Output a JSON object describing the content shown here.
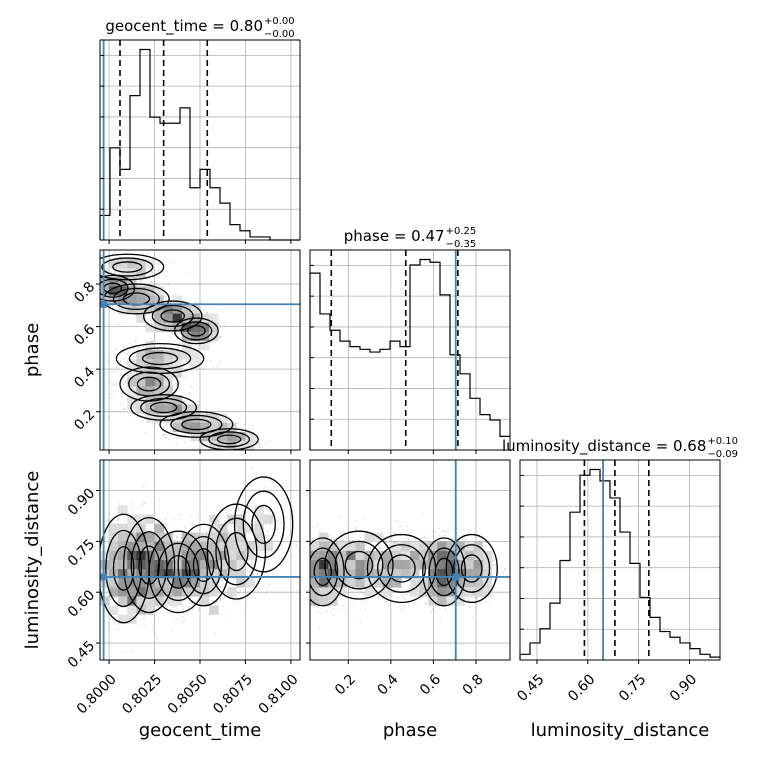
{
  "chart_data": {
    "type": "corner",
    "parameters": [
      {
        "name": "geocent_time",
        "range": [
          0.7995,
          0.8105
        ],
        "ticks": [
          "0.8000",
          "0.8025",
          "0.8050",
          "0.8075",
          "0.8100"
        ],
        "tick_values": [
          0.8,
          0.8025,
          0.805,
          0.8075,
          0.81
        ],
        "truth": 0.7997,
        "title": {
          "label": "geocent_time = 0.80",
          "plus": "+0.00",
          "minus": "−0.00"
        },
        "quantiles": [
          0.8006,
          0.803,
          0.8054
        ],
        "hist": {
          "edges_start": 0.7995,
          "bin_width": 0.00055,
          "counts": [
            8,
            30,
            23,
            47,
            62,
            40,
            38,
            38,
            43,
            17,
            23,
            17,
            12,
            5,
            3,
            1,
            1,
            0,
            0,
            0
          ]
        }
      },
      {
        "name": "phase",
        "range": [
          0.02,
          0.96
        ],
        "ticks": [
          "0.2",
          "0.4",
          "0.6",
          "0.8"
        ],
        "tick_values": [
          0.2,
          0.4,
          0.6,
          0.8
        ],
        "truth": 0.705,
        "title": {
          "label": "phase = 0.47",
          "plus": "+0.25",
          "minus": "−0.35"
        },
        "quantiles": [
          0.12,
          0.47,
          0.715
        ],
        "hist": {
          "edges_start": 0.02,
          "bin_width": 0.047,
          "counts": [
            65,
            50,
            44,
            40,
            38,
            37,
            36,
            37,
            40,
            38,
            68,
            70,
            69,
            57,
            35,
            28,
            19,
            13,
            11,
            5
          ]
        }
      },
      {
        "name": "luminosity_distance",
        "range": [
          0.4,
          0.99
        ],
        "ticks": [
          "0.45",
          "0.60",
          "0.75",
          "0.90"
        ],
        "tick_values": [
          0.45,
          0.6,
          0.75,
          0.9
        ],
        "truth": 0.645,
        "title": {
          "label": "luminosity_distance = 0.68",
          "plus": "+0.10",
          "minus": "−0.09"
        },
        "quantiles": [
          0.59,
          0.68,
          0.78
        ],
        "hist": {
          "edges_start": 0.4,
          "bin_width": 0.0295,
          "counts": [
            2,
            6,
            11,
            20,
            35,
            52,
            65,
            67,
            63,
            57,
            45,
            34,
            22,
            15,
            10,
            8,
            6,
            4,
            2,
            1
          ]
        }
      }
    ],
    "grid": true
  }
}
